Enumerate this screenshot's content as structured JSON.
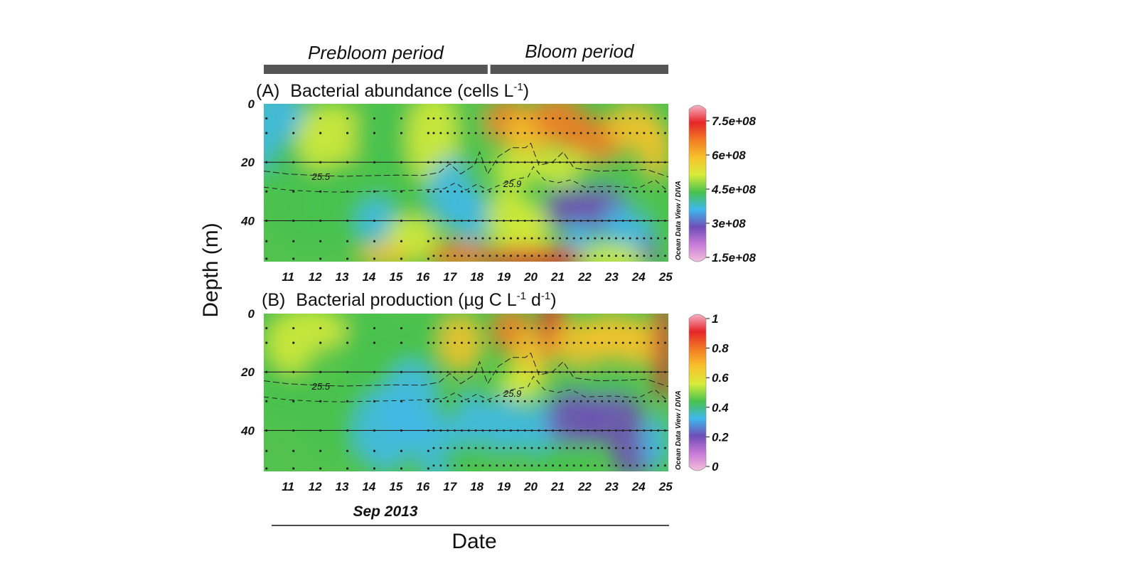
{
  "periods": [
    {
      "label": "Prebloom period",
      "start_day": 10.1,
      "end_day": 18.4
    },
    {
      "label": "Bloom period",
      "start_day": 18.5,
      "end_day": 25.1
    }
  ],
  "shared": {
    "ylabel": "Depth (m)",
    "xlabel": "Date",
    "month_label": "Sep 2013",
    "x_ticks": [
      "11",
      "12",
      "13",
      "14",
      "15",
      "16",
      "17",
      "18",
      "19",
      "20",
      "21",
      "22",
      "23",
      "24",
      "25"
    ],
    "y_ticks": [
      "0",
      "20",
      "40"
    ],
    "credit": "Ocean Data View / DIVA",
    "colors": {
      "colormap": [
        "#f3c0dc",
        "#c87ad6",
        "#6f4db8",
        "#3fb8ec",
        "#48c24e",
        "#d9ec3a",
        "#f8c22a",
        "#f27b24",
        "#e52528",
        "#f7b2c6"
      ],
      "isopycnal_line": "#222222",
      "station_dot": "#222222",
      "bar": "#555555"
    }
  },
  "chart_data": [
    {
      "type": "heatmap",
      "panel": "(A)",
      "title": "Bacterial abundance (cells L",
      "title_sup": "-1",
      "title_end": ")",
      "xlabel": "Date",
      "ylabel": "Depth (m)",
      "xlim": [
        10.1,
        25.1
      ],
      "ylim": [
        54,
        0
      ],
      "colorbar": {
        "ticks": [
          "7.5e+08",
          "6e+08",
          "4.5e+08",
          "3e+08",
          "1.5e+08"
        ],
        "tick_values": [
          750000000,
          600000000,
          450000000,
          300000000,
          150000000
        ],
        "range": [
          150000000,
          800000000
        ]
      },
      "contours": [
        {
          "label": "25.5",
          "x": 12.2,
          "depth": 25
        },
        {
          "label": "25.9",
          "x": 19.3,
          "depth": 27.5
        }
      ]
    },
    {
      "type": "heatmap",
      "panel": "(B)",
      "title": "Bacterial production (µg C L",
      "title_sup": "-1",
      "title_mid": " d",
      "title_sup2": "-1",
      "title_end": ")",
      "xlabel": "Date",
      "ylabel": "Depth (m)",
      "xlim": [
        10.1,
        25.1
      ],
      "ylim": [
        54,
        0
      ],
      "colorbar": {
        "ticks": [
          "1",
          "0.8",
          "0.6",
          "0.4",
          "0.2",
          "0"
        ],
        "tick_values": [
          1,
          0.8,
          0.6,
          0.4,
          0.2,
          0
        ],
        "range": [
          0,
          1
        ]
      },
      "contours": [
        {
          "label": "25.5",
          "x": 12.2,
          "depth": 25
        },
        {
          "label": "25.9",
          "x": 19.3,
          "depth": 27.5
        }
      ]
    }
  ]
}
